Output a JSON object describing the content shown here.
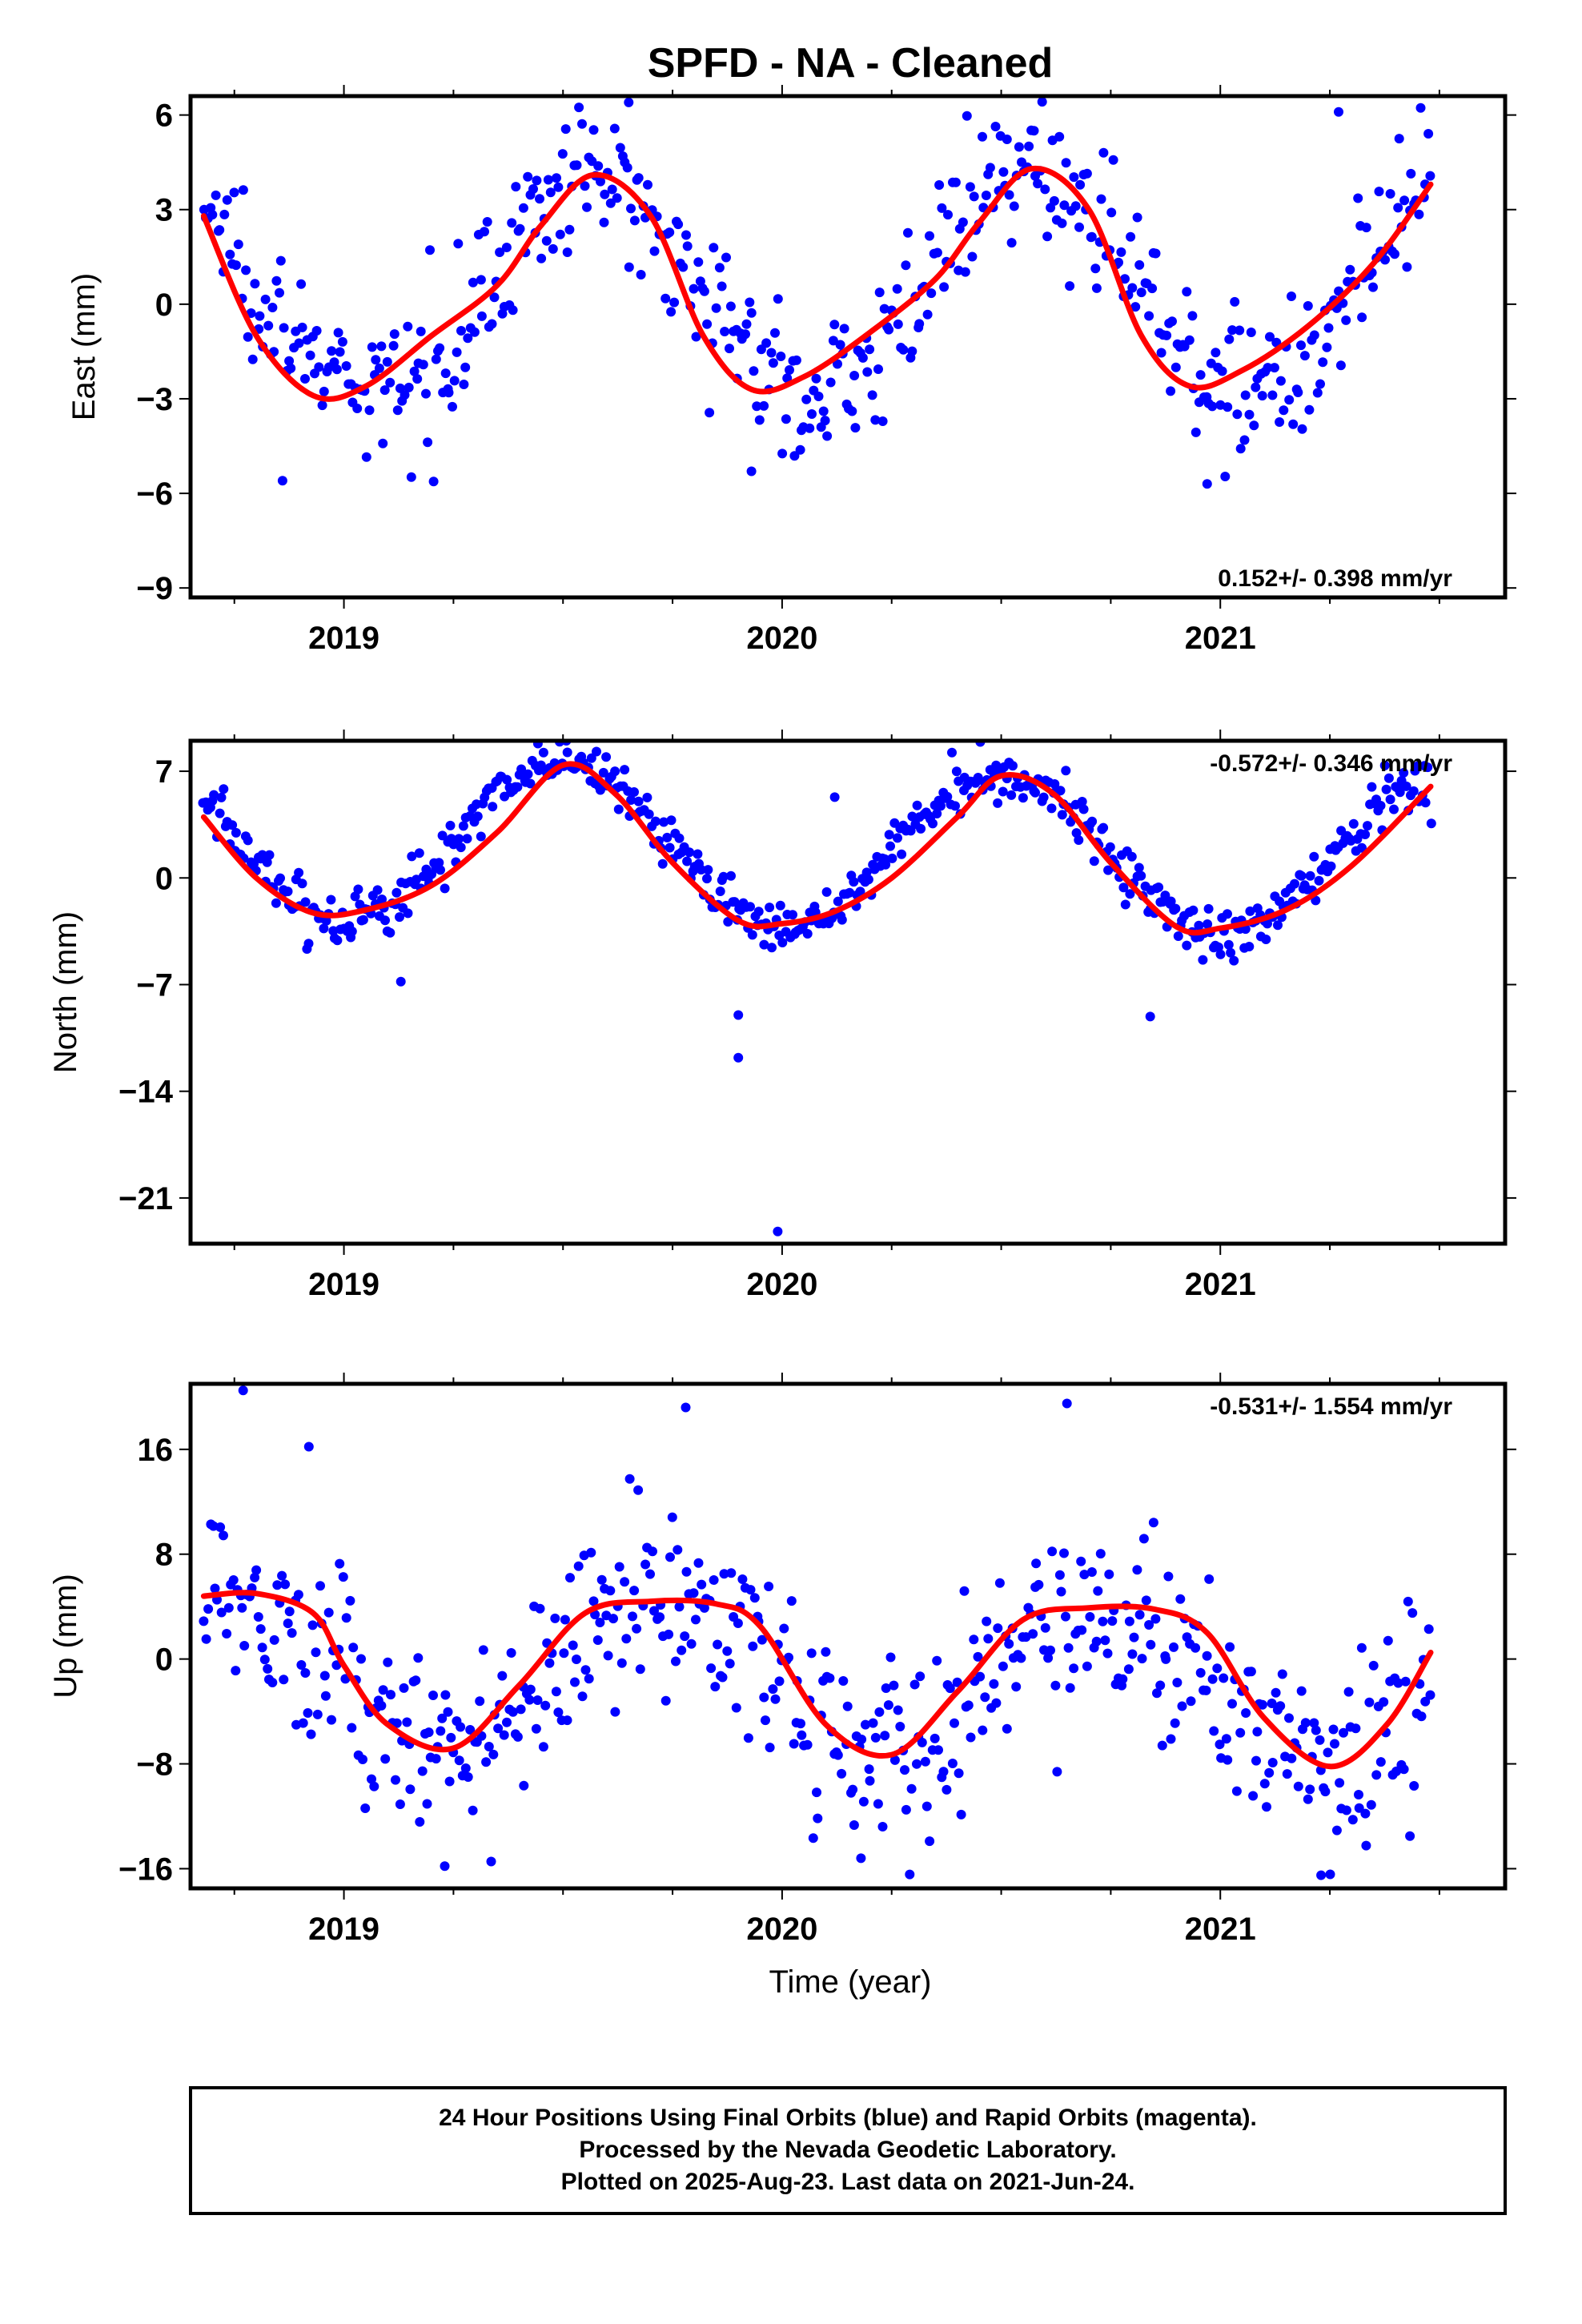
{
  "colors": {
    "points": "#0000ff",
    "fit": "#ff0000",
    "frame": "#000000"
  },
  "chart_data": [
    {
      "type": "scatter",
      "id": "east",
      "title": "SPFD  - NA - Cleaned",
      "ylabel": "East (mm)",
      "xlabel": "",
      "xlim": [
        2018.65,
        2021.65
      ],
      "ylim": [
        -9.3,
        6.6
      ],
      "yticks": [
        6,
        3,
        0,
        -3,
        -6,
        -9
      ],
      "ytick_labels": [
        "6",
        "3",
        "0",
        "−3",
        "−6",
        "−9"
      ],
      "xticks": [
        2019,
        2020,
        2021
      ],
      "xtick_labels": [
        "2019",
        "2020",
        "2021"
      ],
      "rate_label": "0.152+/- 0.398 mm/yr",
      "rate_pos": "bottom-right",
      "series": [
        {
          "kind": "points",
          "x_start": 2018.68,
          "x_end": 2021.48,
          "n": 520,
          "seasonal": {
            "mean": 0.6,
            "trend": 0.152,
            "amp": 3.4,
            "phase": 2019.57
          },
          "noise_sd": 1.1,
          "outliers": [
            [
              2018.86,
              -5.6
            ],
            [
              2019.93,
              -5.3
            ],
            [
              2020.97,
              -5.7
            ],
            [
              2019.65,
              6.4
            ],
            [
              2021.27,
              6.1
            ]
          ]
        },
        {
          "kind": "fit",
          "name": "",
          "x": [
            2018.68,
            2018.8,
            2018.93,
            2019.05,
            2019.2,
            2019.35,
            2019.45,
            2019.57,
            2019.7,
            2019.82,
            2019.93,
            2020.05,
            2020.2,
            2020.35,
            2020.45,
            2020.57,
            2020.7,
            2020.82,
            2020.93,
            2021.05,
            2021.2,
            2021.35,
            2021.48
          ],
          "y": [
            2.8,
            -1.0,
            -2.9,
            -2.6,
            -1.0,
            0.6,
            2.5,
            4.1,
            2.8,
            -1.0,
            -2.7,
            -2.3,
            -0.9,
            0.8,
            2.6,
            4.3,
            3.0,
            -1.0,
            -2.6,
            -2.1,
            -0.7,
            1.3,
            3.8
          ]
        }
      ]
    },
    {
      "type": "scatter",
      "id": "north",
      "title": "",
      "ylabel": "North (mm)",
      "xlabel": "",
      "xlim": [
        2018.65,
        2021.65
      ],
      "ylim": [
        -24,
        9
      ],
      "yticks": [
        7,
        0,
        -7,
        -14,
        -21
      ],
      "ytick_labels": [
        "7",
        "0",
        "−7",
        "−14",
        "−21"
      ],
      "xticks": [
        2019,
        2020,
        2021
      ],
      "xtick_labels": [
        "2019",
        "2020",
        "2021"
      ],
      "rate_label": "-0.572+/- 0.346 mm/yr",
      "rate_pos": "top-right",
      "series": [
        {
          "kind": "points",
          "x_start": 2018.68,
          "x_end": 2021.48,
          "n": 560,
          "seasonal": {
            "mean": 2.0,
            "trend": -0.572,
            "amp": 5.3,
            "phase": 2019.5
          },
          "noise_sd": 0.9,
          "outliers": [
            [
              2019.13,
              -6.8
            ],
            [
              2019.9,
              -9.0
            ],
            [
              2019.9,
              -11.8
            ],
            [
              2019.99,
              -23.2
            ],
            [
              2020.84,
              -9.1
            ],
            [
              2020.12,
              5.3
            ]
          ]
        },
        {
          "kind": "fit",
          "name": "",
          "x": [
            2018.68,
            2018.8,
            2018.93,
            2019.05,
            2019.2,
            2019.35,
            2019.5,
            2019.62,
            2019.75,
            2019.9,
            2020.0,
            2020.12,
            2020.25,
            2020.4,
            2020.5,
            2020.62,
            2020.75,
            2020.9,
            2021.0,
            2021.15,
            2021.3,
            2021.48
          ],
          "y": [
            4.0,
            0.0,
            -2.3,
            -2.1,
            -0.5,
            3.0,
            7.4,
            5.5,
            1.0,
            -2.8,
            -3.0,
            -2.2,
            0.0,
            4.0,
            6.7,
            5.5,
            1.0,
            -3.2,
            -3.3,
            -2.1,
            0.8,
            6.0
          ]
        }
      ]
    },
    {
      "type": "scatter",
      "id": "up",
      "title": "",
      "ylabel": "Up (mm)",
      "xlabel": "Time (year)",
      "xlim": [
        2018.65,
        2021.65
      ],
      "ylim": [
        -17.5,
        21
      ],
      "yticks": [
        16,
        8,
        0,
        -8,
        -16
      ],
      "ytick_labels": [
        "16",
        "8",
        "0",
        "−8",
        "−16"
      ],
      "xticks": [
        2019,
        2020,
        2021
      ],
      "xtick_labels": [
        "2019",
        "2020",
        "2021"
      ],
      "rate_label": "-0.531+/- 1.554 mm/yr",
      "rate_pos": "top-right",
      "series": [
        {
          "kind": "points",
          "x_start": 2018.68,
          "x_end": 2021.48,
          "n": 540,
          "seasonal": {
            "mean": -1.2,
            "trend": -0.531,
            "amp": 5.8,
            "phase": 2019.72
          },
          "noise_sd": 3.6,
          "outliers": [
            [
              2018.77,
              20.5
            ],
            [
              2018.92,
              16.2
            ],
            [
              2019.78,
              19.2
            ],
            [
              2020.65,
              19.5
            ],
            [
              2019.23,
              -15.8
            ],
            [
              2021.23,
              -16.5
            ],
            [
              2020.18,
              -15.2
            ]
          ]
        },
        {
          "kind": "fit",
          "name": "",
          "x": [
            2018.68,
            2018.8,
            2018.93,
            2019.0,
            2019.1,
            2019.25,
            2019.4,
            2019.55,
            2019.7,
            2019.85,
            2019.95,
            2020.1,
            2020.25,
            2020.4,
            2020.55,
            2020.7,
            2020.85,
            2020.97,
            2021.1,
            2021.25,
            2021.38,
            2021.48
          ],
          "y": [
            4.8,
            5.0,
            3.5,
            -0.5,
            -5.0,
            -6.8,
            -2.0,
            3.5,
            4.4,
            4.2,
            2.5,
            -5.0,
            -7.3,
            -2.5,
            3.0,
            3.9,
            3.8,
            2.0,
            -4.5,
            -8.2,
            -5.0,
            0.5
          ]
        }
      ]
    }
  ],
  "footer": {
    "line1": "24 Hour Positions Using Final Orbits (blue) and Rapid Orbits (magenta).",
    "line2": "Processed by the Nevada Geodetic Laboratory.",
    "line3": "Plotted on 2025-Aug-23. Last data on 2021-Jun-24."
  }
}
